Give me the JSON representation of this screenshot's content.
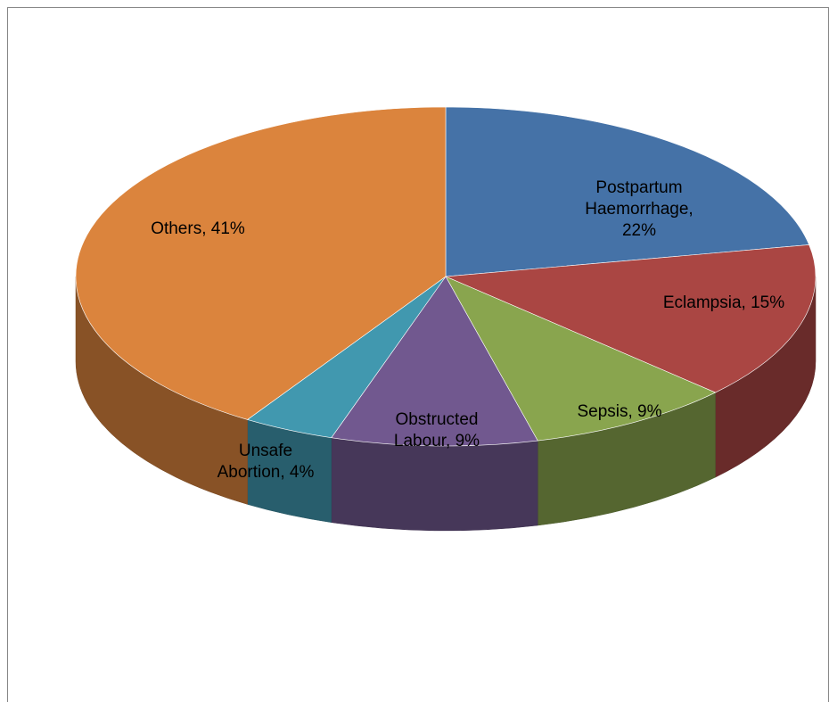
{
  "chart_data": {
    "type": "pie3d",
    "values": [
      22,
      15,
      9,
      9,
      4,
      41
    ],
    "value_labels": [
      "Postpartum Haemorrhage, 22%",
      "Eclampsia, 15%",
      "Sepsis, 9%",
      "Obstructed Labour, 9%",
      "Unsafe Abortion, 4%",
      "Others, 41%"
    ],
    "colors": [
      "#4572a7",
      "#aa4643",
      "#89a54e",
      "#71588f",
      "#4198af",
      "#db843d"
    ]
  }
}
